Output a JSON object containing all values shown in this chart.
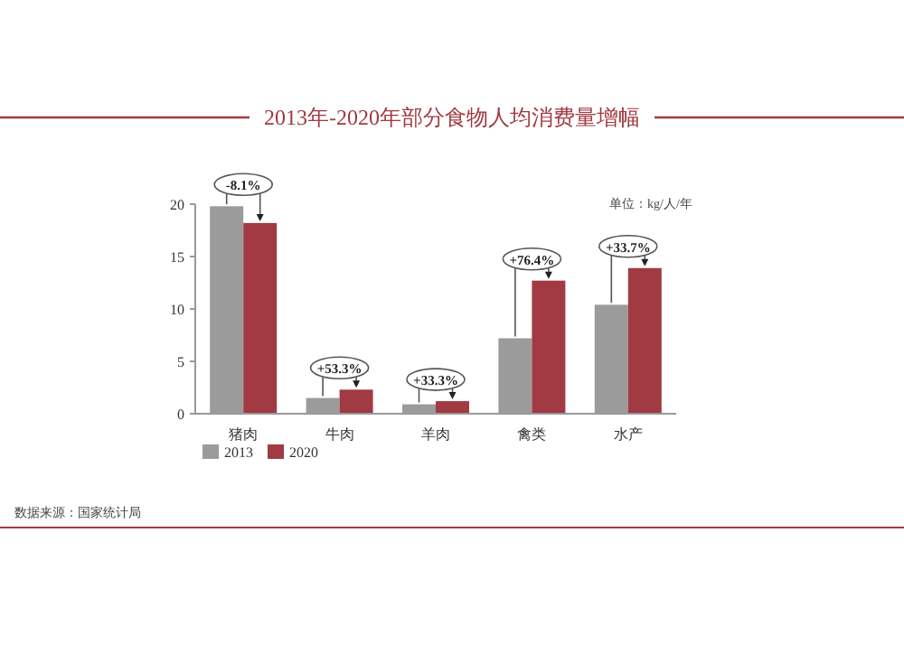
{
  "chart_data": {
    "type": "bar",
    "title": "2013年-2020年部分食物人均消费量增幅",
    "categories": [
      "猪肉",
      "牛肉",
      "羊肉",
      "禽类",
      "水产"
    ],
    "series": [
      {
        "name": "2013",
        "color": "#9b9b9b",
        "values": [
          19.8,
          1.5,
          0.9,
          7.2,
          10.4
        ]
      },
      {
        "name": "2020",
        "color": "#a13a42",
        "values": [
          18.2,
          2.3,
          1.2,
          12.7,
          13.9
        ]
      }
    ],
    "ylim": [
      0,
      20
    ],
    "yticks": [
      0,
      5,
      10,
      15,
      20
    ],
    "legend": "bottom",
    "annotations": [
      {
        "text": "-8.1%",
        "x": "猪肉",
        "y": 19.8
      },
      {
        "text": "+53.3%",
        "x": "牛肉",
        "y": 2.3
      },
      {
        "text": "+33.3%",
        "x": "羊肉",
        "y": 1.2
      },
      {
        "text": "+76.4%",
        "x": "禽类",
        "y": 12.7
      },
      {
        "text": "+33.7%",
        "x": "水产",
        "y": 13.9
      },
      "单位：kg/人/年",
      "数据来源：国家统计局"
    ]
  }
}
